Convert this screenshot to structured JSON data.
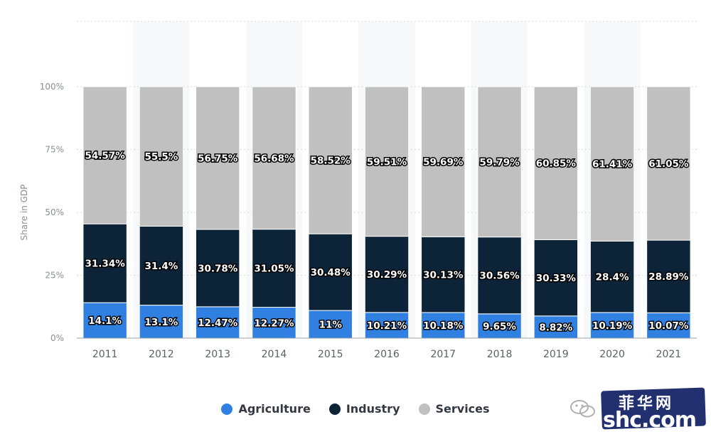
{
  "chart_data": {
    "type": "bar",
    "stacked": true,
    "ylabel": "Share in GDP",
    "ylim": [
      0,
      100
    ],
    "yticks": [
      "0%",
      "25%",
      "50%",
      "75%",
      "100%"
    ],
    "grid": true,
    "legend_position": "bottom",
    "categories": [
      "2011",
      "2012",
      "2013",
      "2014",
      "2015",
      "2016",
      "2017",
      "2018",
      "2019",
      "2020",
      "2021"
    ],
    "series": [
      {
        "name": "Agriculture",
        "color": "#2f80e0",
        "values": [
          14.1,
          13.1,
          12.47,
          12.27,
          11,
          10.21,
          10.18,
          9.65,
          8.82,
          10.19,
          10.07
        ],
        "labels": [
          "14.1%",
          "13.1%",
          "12.47%",
          "12.27%",
          "11%",
          "10.21%",
          "10.18%",
          "9.65%",
          "8.82%",
          "10.19%",
          "10.07%"
        ]
      },
      {
        "name": "Industry",
        "color": "#0d2438",
        "values": [
          31.34,
          31.4,
          30.78,
          31.05,
          30.48,
          30.29,
          30.13,
          30.56,
          30.33,
          28.4,
          28.89
        ],
        "labels": [
          "31.34%",
          "31.4%",
          "30.78%",
          "31.05%",
          "30.48%",
          "30.29%",
          "30.13%",
          "30.56%",
          "30.33%",
          "28.4%",
          "28.89%"
        ]
      },
      {
        "name": "Services",
        "color": "#c0c0c0",
        "values": [
          54.57,
          55.5,
          56.75,
          56.68,
          58.52,
          59.51,
          59.69,
          59.79,
          60.85,
          61.41,
          61.05
        ],
        "labels": [
          "54.57%",
          "55.5%",
          "56.75%",
          "56.68%",
          "58.52%",
          "59.51%",
          "59.69%",
          "59.79%",
          "60.85%",
          "61.41%",
          "61.05%"
        ]
      }
    ]
  },
  "watermark": {
    "icon": "wechat-icon",
    "text_cn": "菲华网",
    "domain": "shc.com"
  }
}
